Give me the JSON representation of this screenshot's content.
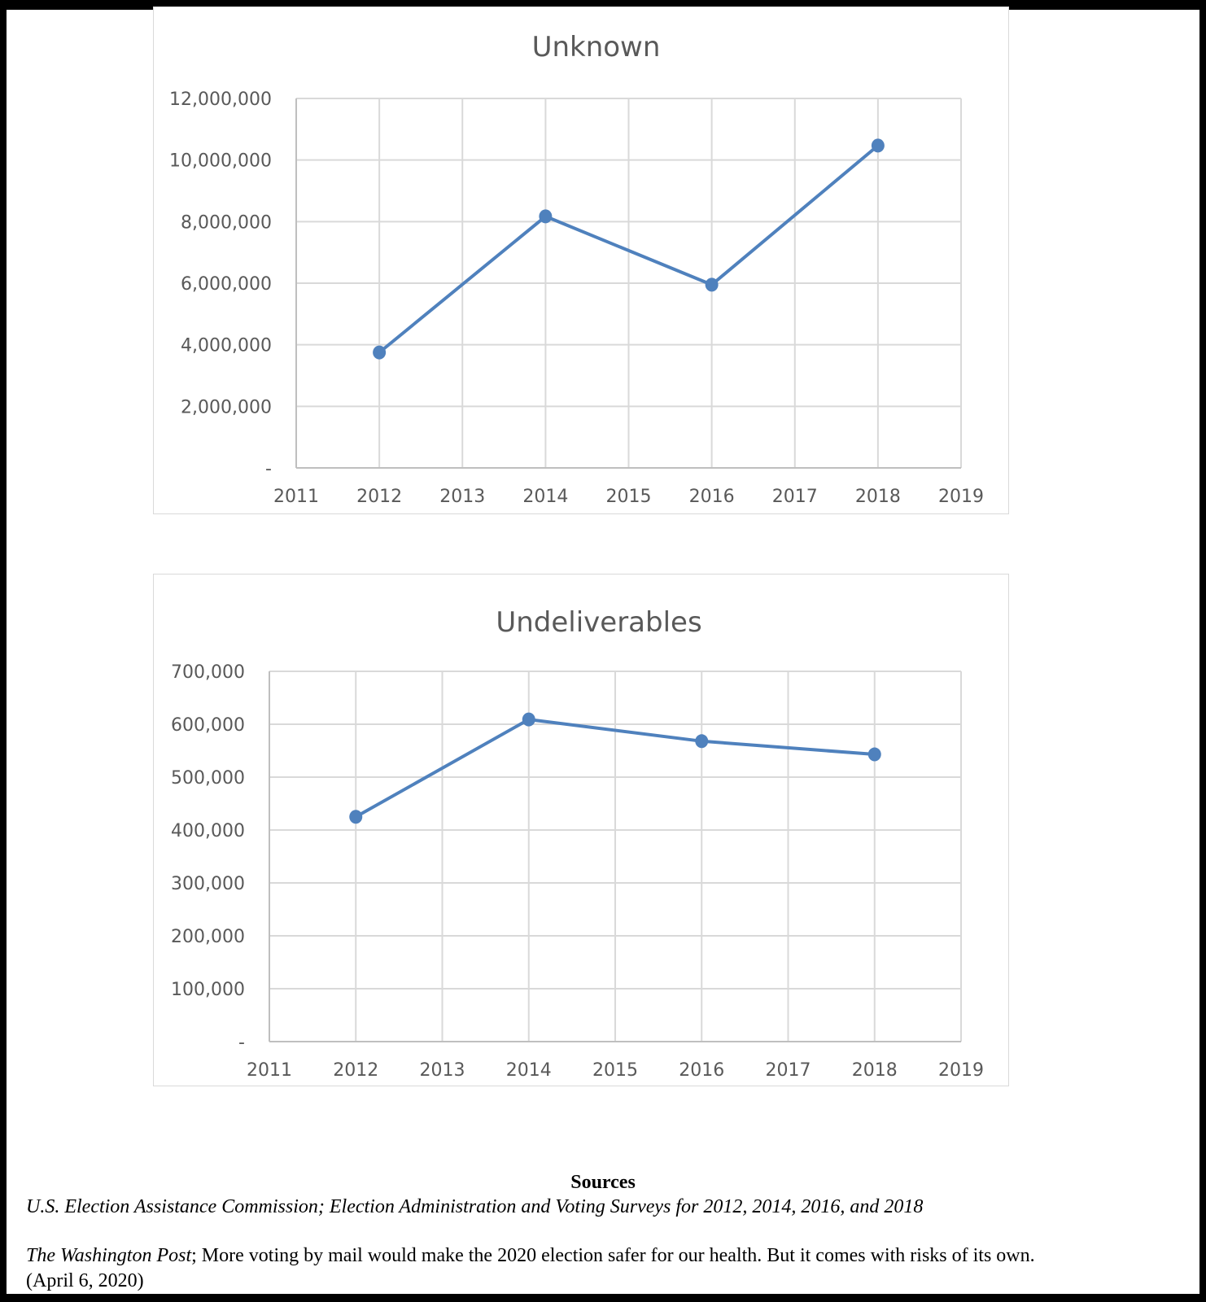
{
  "chart_data": [
    {
      "type": "line",
      "title": "Unknown",
      "xlabel": "",
      "ylabel": "",
      "x_ticks": [
        "2011",
        "2012",
        "2013",
        "2014",
        "2015",
        "2016",
        "2017",
        "2018",
        "2019"
      ],
      "y_ticks": [
        "-",
        "2,000,000",
        "4,000,000",
        "6,000,000",
        "8,000,000",
        "10,000,000",
        "12,000,000"
      ],
      "xlim": [
        2011,
        2019
      ],
      "ylim": [
        0,
        12000000
      ],
      "grid": true,
      "series": [
        {
          "name": "Unknown",
          "x": [
            2012,
            2014,
            2016,
            2018
          ],
          "values": [
            3750000,
            8170000,
            5950000,
            10470000
          ]
        }
      ],
      "color": "#4f81bd"
    },
    {
      "type": "line",
      "title": "Undeliverables",
      "xlabel": "",
      "ylabel": "",
      "x_ticks": [
        "2011",
        "2012",
        "2013",
        "2014",
        "2015",
        "2016",
        "2017",
        "2018",
        "2019"
      ],
      "y_ticks": [
        "-",
        "100,000",
        "200,000",
        "300,000",
        "400,000",
        "500,000",
        "600,000",
        "700,000"
      ],
      "xlim": [
        2011,
        2019
      ],
      "ylim": [
        0,
        700000
      ],
      "grid": true,
      "series": [
        {
          "name": "Undeliverables",
          "x": [
            2012,
            2014,
            2016,
            2018
          ],
          "values": [
            425000,
            609000,
            568000,
            543000
          ]
        }
      ],
      "color": "#4f81bd"
    }
  ],
  "sources": {
    "title": "Sources",
    "line1": "U.S. Election Assistance Commission; Election Administration and Voting Surveys for 2012, 2014, 2016, and 2018",
    "line2_pub": "The Washington Post",
    "line2_rest": "; More voting by mail would make the 2020 election safer for our health. But it comes with risks of its own.",
    "line3": "(April 6, 2020)"
  }
}
